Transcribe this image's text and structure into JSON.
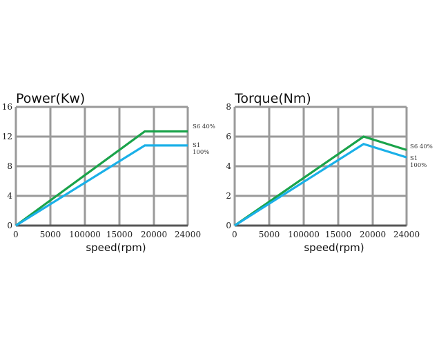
{
  "chart_data": [
    {
      "type": "line",
      "title": "Power(Kw)",
      "xlabel": "speed(rpm)",
      "ylabel": "",
      "xlim": [
        0,
        24000
      ],
      "ylim": [
        0,
        16
      ],
      "grid": true,
      "x_tick_labels": [
        "0",
        "5000",
        "100000",
        "15000",
        "20000",
        "24000"
      ],
      "y_tick_labels": [
        "0",
        "4",
        "8",
        "12",
        "16"
      ],
      "series": [
        {
          "name": "S6 40%",
          "color": "#1aa34a",
          "x": [
            0,
            18000,
            24000
          ],
          "y": [
            0,
            12.7,
            12.7
          ]
        },
        {
          "name": "S1 100%",
          "color": "#1ab0e8",
          "x": [
            0,
            18000,
            24000
          ],
          "y": [
            0,
            10.8,
            10.8
          ]
        }
      ]
    },
    {
      "type": "line",
      "title": "Torque(Nm)",
      "xlabel": "speed(rpm)",
      "ylabel": "",
      "xlim": [
        0,
        24000
      ],
      "ylim": [
        0,
        8
      ],
      "grid": true,
      "x_tick_labels": [
        "0",
        "5000",
        "100000",
        "15000",
        "20000",
        "24000"
      ],
      "y_tick_labels": [
        "0",
        "2",
        "4",
        "6",
        "8"
      ],
      "series": [
        {
          "name": "S6 40%",
          "color": "#1aa34a",
          "x": [
            0,
            18000,
            24000
          ],
          "y": [
            0,
            6.0,
            5.1
          ]
        },
        {
          "name": "S1 100%",
          "color": "#1ab0e8",
          "x": [
            0,
            18000,
            24000
          ],
          "y": [
            0,
            5.5,
            4.6
          ]
        }
      ]
    }
  ]
}
